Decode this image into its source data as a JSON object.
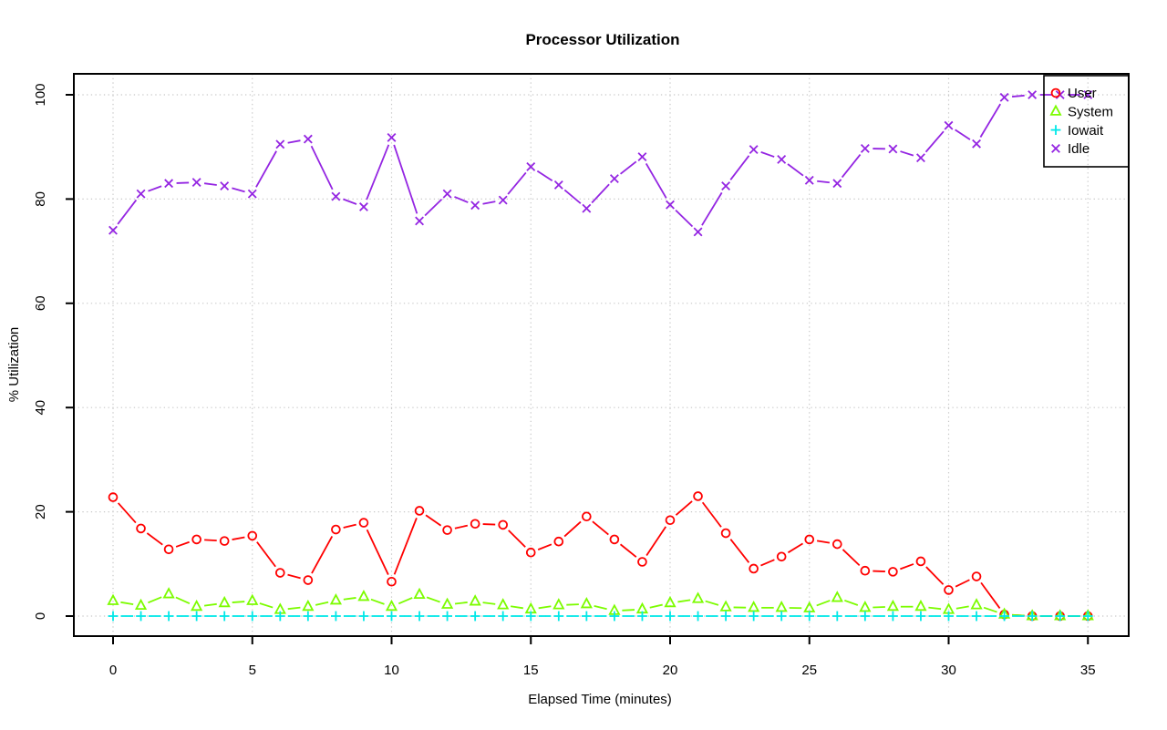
{
  "chart_data": {
    "type": "line",
    "title": "Processor Utilization",
    "xlabel": "Elapsed Time (minutes)",
    "ylabel": "% Utilization",
    "xlim": [
      0,
      35
    ],
    "ylim": [
      0,
      100
    ],
    "x_ticks": [
      0,
      5,
      10,
      15,
      20,
      25,
      30,
      35
    ],
    "y_ticks": [
      0,
      20,
      40,
      60,
      80,
      100
    ],
    "grid": "dotted",
    "grid_color": "#c8c8c8",
    "legend_position": "top-right",
    "x": [
      0,
      1,
      2,
      3,
      4,
      5,
      6,
      7,
      8,
      9,
      10,
      11,
      12,
      13,
      14,
      15,
      16,
      17,
      18,
      19,
      20,
      21,
      22,
      23,
      24,
      25,
      26,
      27,
      28,
      29,
      30,
      31,
      32,
      33,
      34,
      35
    ],
    "series": [
      {
        "name": "User",
        "color": "#ff0000",
        "marker": "circle",
        "values": [
          22.8,
          16.8,
          12.8,
          14.7,
          14.4,
          15.4,
          8.3,
          6.9,
          16.6,
          17.9,
          6.6,
          20.2,
          16.5,
          17.7,
          17.5,
          12.2,
          14.3,
          19.1,
          14.7,
          10.4,
          18.4,
          23.0,
          15.9,
          9.1,
          11.4,
          14.7,
          13.8,
          8.7,
          8.5,
          10.5,
          5.0,
          7.6,
          0.3,
          0,
          0,
          0
        ]
      },
      {
        "name": "System",
        "color": "#7cfc00",
        "marker": "triangle",
        "values": [
          2.9,
          2.0,
          4.2,
          1.8,
          2.5,
          2.9,
          1.2,
          1.8,
          3.0,
          3.7,
          1.8,
          4.1,
          2.2,
          2.8,
          2.1,
          1.3,
          2.1,
          2.3,
          1.0,
          1.3,
          2.5,
          3.3,
          1.7,
          1.6,
          1.6,
          1.5,
          3.5,
          1.6,
          1.8,
          1.8,
          1.2,
          2.1,
          0.3,
          0,
          0,
          0
        ]
      },
      {
        "name": "Iowait",
        "color": "#00e8e8",
        "marker": "plus",
        "values": [
          0,
          0,
          0,
          0,
          0,
          0,
          0,
          0,
          0,
          0,
          0,
          0,
          0,
          0,
          0,
          0,
          0,
          0,
          0,
          0,
          0,
          0,
          0,
          0,
          0,
          0,
          0,
          0,
          0,
          0,
          0,
          0,
          0,
          0,
          0,
          0
        ]
      },
      {
        "name": "Idle",
        "color": "#9425e2",
        "marker": "x",
        "values": [
          74.0,
          81.0,
          83.0,
          83.2,
          82.5,
          81.0,
          90.5,
          91.5,
          80.5,
          78.5,
          91.8,
          75.8,
          81.0,
          78.8,
          79.8,
          86.2,
          82.7,
          78.2,
          83.9,
          88.1,
          78.9,
          73.7,
          82.5,
          89.5,
          87.6,
          83.6,
          83.0,
          89.7,
          89.6,
          87.9,
          94.1,
          90.6,
          99.5,
          100,
          100,
          100
        ]
      }
    ]
  }
}
